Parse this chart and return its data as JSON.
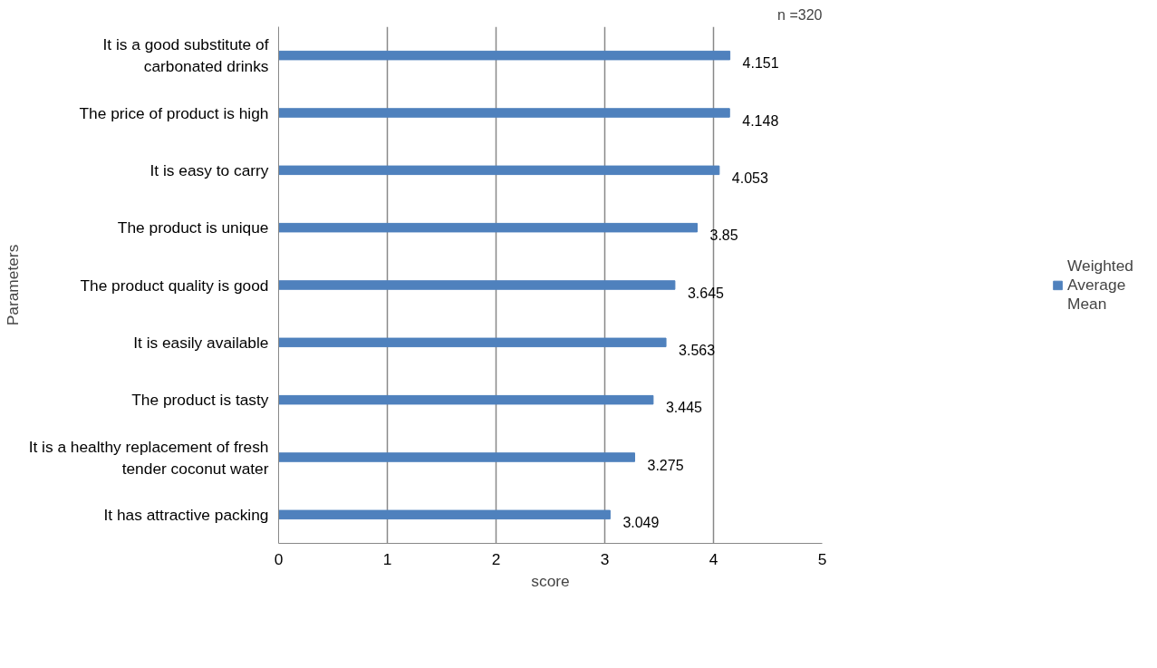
{
  "chart_data": {
    "type": "bar",
    "orientation": "horizontal",
    "categories": [
      "It is a good substitute of\ncarbonated drinks",
      "The price of product is high",
      "It is easy to carry",
      "The product is unique",
      "The product quality is good",
      "It is easily available",
      "The product is tasty",
      "It is a healthy replacement of fresh\ntender coconut water",
      "It has attractive packing"
    ],
    "series": [
      {
        "name": "Weighted Average Mean",
        "color": "#4f81bd",
        "values": [
          4.151,
          4.148,
          4.053,
          3.85,
          3.645,
          3.563,
          3.445,
          3.275,
          3.049
        ]
      }
    ],
    "xlabel": "score",
    "ylabel": "Parameters",
    "xlim": [
      0,
      5
    ],
    "xticks": [
      0,
      1,
      2,
      3,
      4,
      5
    ],
    "grid": "x",
    "legend": "right",
    "data_labels": true,
    "annotations": [
      "n =320"
    ]
  }
}
